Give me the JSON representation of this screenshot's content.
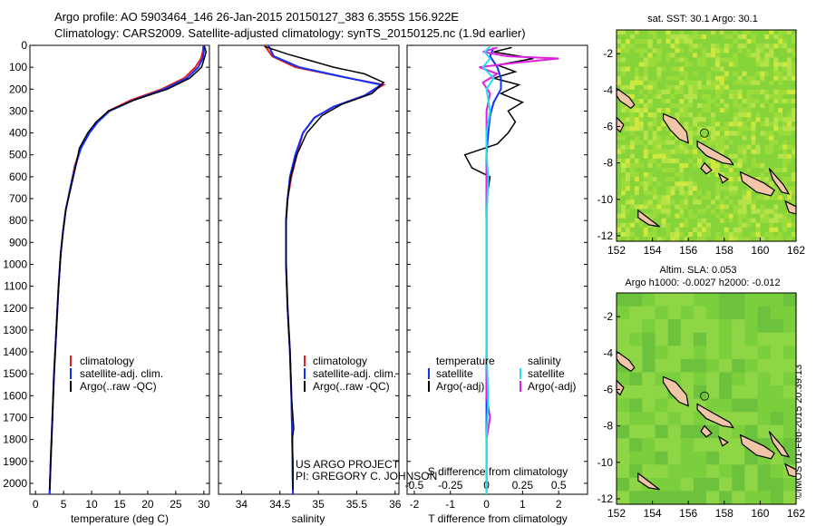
{
  "header": {
    "line1": "Argo profile: AO 5903464_146 26-Jan-2015 20150127_383 6.355S 156.922E",
    "line2": "Climatology: CARS2009. Satellite-adjusted climatology: synTS_20150125.nc (1.9d earlier)"
  },
  "watermark": "©IMOS 01-Feb-2015 20:39:13",
  "colors": {
    "climatology": "#e02020",
    "satellite": "#1030ff",
    "argo": "#000000",
    "sat_salinity": "#20e0f0",
    "argo_salinity": "#e020e0"
  },
  "chart_data": [
    {
      "type": "line",
      "name": "temperature-profile",
      "xlabel": "temperature (deg C)",
      "ylabel": "",
      "xlim": [
        -1,
        31
      ],
      "ylim": [
        2050,
        0
      ],
      "xticks": [
        "0",
        "5",
        "10",
        "15",
        "20",
        "25",
        "30"
      ],
      "yticks": [
        "0",
        "100",
        "200",
        "300",
        "400",
        "500",
        "600",
        "700",
        "800",
        "900",
        "1000",
        "1100",
        "1200",
        "1300",
        "1400",
        "1500",
        "1600",
        "1700",
        "1800",
        "1900",
        "2000"
      ],
      "legend": [
        "climatology",
        "satellite-adj. clim.",
        "Argo(..raw -QC)"
      ],
      "series": [
        {
          "name": "climatology",
          "color": "#e02020",
          "width": 2,
          "points": [
            [
              29.9,
              0
            ],
            [
              29.8,
              30
            ],
            [
              29.5,
              60
            ],
            [
              28.5,
              100
            ],
            [
              26.5,
              150
            ],
            [
              22.5,
              200
            ],
            [
              17,
              250
            ],
            [
              13,
              300
            ],
            [
              11,
              350
            ],
            [
              9.5,
              400
            ],
            [
              8,
              470
            ],
            [
              7,
              550
            ],
            [
              6.2,
              650
            ],
            [
              5.4,
              750
            ],
            [
              4.9,
              850
            ],
            [
              4.5,
              950
            ],
            [
              4.1,
              1100
            ],
            [
              3.7,
              1300
            ],
            [
              3.3,
              1500
            ],
            [
              3,
              1700
            ],
            [
              2.7,
              1900
            ],
            [
              2.5,
              2050
            ]
          ]
        },
        {
          "name": "satellite",
          "color": "#1030ff",
          "width": 2,
          "points": [
            [
              30.1,
              0
            ],
            [
              30,
              30
            ],
            [
              29.8,
              60
            ],
            [
              29,
              100
            ],
            [
              27,
              150
            ],
            [
              23,
              200
            ],
            [
              17.5,
              250
            ],
            [
              13.2,
              300
            ],
            [
              11.1,
              350
            ],
            [
              9.6,
              400
            ],
            [
              8.1,
              470
            ],
            [
              7.1,
              550
            ],
            [
              6.2,
              650
            ],
            [
              5.4,
              750
            ],
            [
              4.9,
              850
            ],
            [
              4.5,
              950
            ],
            [
              4.1,
              1100
            ],
            [
              3.7,
              1300
            ],
            [
              3.3,
              1500
            ],
            [
              3,
              1700
            ],
            [
              2.7,
              1900
            ],
            [
              2.5,
              2050
            ]
          ]
        },
        {
          "name": "argo",
          "color": "#000000",
          "width": 1.5,
          "points": [
            [
              30.1,
              5
            ],
            [
              30.4,
              30
            ],
            [
              30.2,
              50
            ],
            [
              29.6,
              100
            ],
            [
              27.5,
              150
            ],
            [
              23.5,
              200
            ],
            [
              17.5,
              250
            ],
            [
              13,
              300
            ],
            [
              10.8,
              350
            ],
            [
              9.3,
              400
            ],
            [
              7.8,
              470
            ],
            [
              7.2,
              550
            ],
            [
              6.3,
              650
            ],
            [
              5.4,
              750
            ],
            [
              4.9,
              850
            ],
            [
              4.5,
              950
            ],
            [
              4.1,
              1100
            ],
            [
              3.7,
              1300
            ],
            [
              3.3,
              1500
            ],
            [
              3,
              1700
            ],
            [
              2.7,
              1900
            ],
            [
              2.5,
              2030
            ]
          ]
        }
      ]
    },
    {
      "type": "line",
      "name": "salinity-profile",
      "xlabel": "salinity",
      "xlim": [
        33.7,
        36.05
      ],
      "ylim": [
        2050,
        0
      ],
      "xticks": [
        "34",
        "34.5",
        "35",
        "35.5",
        "36"
      ],
      "legend": [
        "climatology",
        "satellite-adj. clim.",
        "Argo(..raw -QC)"
      ],
      "annotation": [
        "US ARGO PROJECT",
        "PI: GREGORY C. JOHNSON"
      ],
      "series": [
        {
          "name": "climatology",
          "color": "#e02020",
          "width": 2,
          "points": [
            [
              34.3,
              0
            ],
            [
              34.4,
              50
            ],
            [
              34.7,
              100
            ],
            [
              35.4,
              150
            ],
            [
              35.85,
              180
            ],
            [
              35.6,
              230
            ],
            [
              35.2,
              280
            ],
            [
              34.95,
              330
            ],
            [
              34.8,
              400
            ],
            [
              34.72,
              500
            ],
            [
              34.65,
              600
            ],
            [
              34.6,
              700
            ],
            [
              34.58,
              800
            ],
            [
              34.58,
              1000
            ],
            [
              34.6,
              1200
            ],
            [
              34.63,
              1400
            ],
            [
              34.65,
              1600
            ],
            [
              34.66,
              1800
            ],
            [
              34.67,
              2050
            ]
          ]
        },
        {
          "name": "satellite",
          "color": "#1030ff",
          "width": 2,
          "points": [
            [
              34.35,
              0
            ],
            [
              34.42,
              50
            ],
            [
              34.75,
              100
            ],
            [
              35.4,
              150
            ],
            [
              35.82,
              180
            ],
            [
              35.6,
              230
            ],
            [
              35.2,
              280
            ],
            [
              34.95,
              330
            ],
            [
              34.8,
              400
            ],
            [
              34.7,
              500
            ],
            [
              34.63,
              600
            ],
            [
              34.6,
              700
            ],
            [
              34.58,
              800
            ],
            [
              34.58,
              1000
            ],
            [
              34.6,
              1200
            ],
            [
              34.63,
              1400
            ],
            [
              34.65,
              1600
            ],
            [
              34.66,
              1800
            ],
            [
              34.67,
              2050
            ]
          ]
        },
        {
          "name": "argo",
          "color": "#000000",
          "width": 1.5,
          "points": [
            [
              34.3,
              5
            ],
            [
              34.6,
              40
            ],
            [
              34.9,
              70
            ],
            [
              35.2,
              100
            ],
            [
              35.6,
              130
            ],
            [
              35.85,
              170
            ],
            [
              35.7,
              220
            ],
            [
              35.3,
              270
            ],
            [
              35.05,
              320
            ],
            [
              34.85,
              400
            ],
            [
              34.72,
              500
            ],
            [
              34.64,
              600
            ],
            [
              34.6,
              700
            ],
            [
              34.58,
              800
            ],
            [
              34.58,
              1000
            ],
            [
              34.6,
              1200
            ],
            [
              34.63,
              1400
            ],
            [
              34.65,
              1600
            ],
            [
              34.68,
              1750
            ],
            [
              34.66,
              1800
            ],
            [
              34.67,
              1900
            ],
            [
              34.67,
              2030
            ]
          ]
        }
      ]
    },
    {
      "type": "line",
      "name": "difference-profile",
      "xlabel": "T difference from climatology",
      "xlabel_top": "S difference from climatology",
      "xlim": [
        -2.2,
        2.8
      ],
      "ylim": [
        2050,
        0
      ],
      "xticks": [
        "-2",
        "-1",
        "0",
        "1",
        "2"
      ],
      "xticks_top": [
        "-0.5",
        "-0.25",
        "0",
        "0.25",
        "0.5"
      ],
      "legend_left": [
        "temperature",
        "satellite",
        "Argo(-adj)"
      ],
      "legend_right": [
        "salinity",
        "satellite",
        "Argo(-adj)"
      ],
      "series": [
        {
          "name": "T-argo",
          "color": "#000000",
          "width": 1.5,
          "points": [
            [
              0.7,
              10
            ],
            [
              0.2,
              30
            ],
            [
              1.3,
              60
            ],
            [
              0.3,
              90
            ],
            [
              0.8,
              120
            ],
            [
              0.2,
              150
            ],
            [
              0.9,
              180
            ],
            [
              0.4,
              220
            ],
            [
              1.0,
              260
            ],
            [
              0.6,
              300
            ],
            [
              0.8,
              350
            ],
            [
              0.6,
              400
            ],
            [
              0.3,
              450
            ],
            [
              -0.6,
              500
            ],
            [
              -0.4,
              560
            ],
            [
              0.1,
              600
            ],
            [
              0,
              700
            ],
            [
              0,
              900
            ],
            [
              0,
              1100
            ],
            [
              0,
              1300
            ],
            [
              0,
              1500
            ],
            [
              0,
              1700
            ],
            [
              0,
              1900
            ],
            [
              0,
              2030
            ]
          ]
        },
        {
          "name": "T-satellite",
          "color": "#1030ff",
          "width": 2,
          "points": [
            [
              0.2,
              10
            ],
            [
              0.1,
              50
            ],
            [
              0.3,
              100
            ],
            [
              0.4,
              150
            ],
            [
              0.4,
              200
            ],
            [
              0.2,
              260
            ],
            [
              0.1,
              320
            ],
            [
              0.05,
              400
            ],
            [
              0,
              500
            ],
            [
              0,
              700
            ],
            [
              0,
              900
            ],
            [
              0,
              1100
            ],
            [
              0,
              1300
            ],
            [
              0,
              1500
            ],
            [
              0,
              1700
            ],
            [
              0,
              1900
            ],
            [
              0,
              2050
            ]
          ]
        },
        {
          "name": "S-argo",
          "color": "#e020e0",
          "width": 2,
          "points": [
            [
              0.3,
              10
            ],
            [
              -0.1,
              30
            ],
            [
              0.6,
              50
            ],
            [
              2.0,
              60
            ],
            [
              0.8,
              80
            ],
            [
              -0.2,
              100
            ],
            [
              0.3,
              130
            ],
            [
              -0.1,
              170
            ],
            [
              0.1,
              220
            ],
            [
              0,
              300
            ],
            [
              0,
              400
            ],
            [
              0,
              600
            ],
            [
              0,
              800
            ],
            [
              0,
              1000
            ],
            [
              0,
              1200
            ],
            [
              0,
              1400
            ],
            [
              0,
              1600
            ],
            [
              0.1,
              1700
            ],
            [
              0,
              1800
            ],
            [
              0,
              2030
            ]
          ]
        },
        {
          "name": "S-satellite",
          "color": "#20e0f0",
          "width": 2,
          "points": [
            [
              0.1,
              5
            ],
            [
              -0.05,
              30
            ],
            [
              0.1,
              60
            ],
            [
              -0.1,
              100
            ],
            [
              0.2,
              150
            ],
            [
              0,
              200
            ],
            [
              0.1,
              300
            ],
            [
              0,
              400
            ],
            [
              0,
              500
            ],
            [
              0.05,
              600
            ],
            [
              0,
              800
            ],
            [
              0,
              1000
            ],
            [
              0,
              1200
            ],
            [
              0,
              1400
            ],
            [
              0.05,
              1600
            ],
            [
              0,
              1800
            ],
            [
              0,
              2050
            ]
          ]
        }
      ]
    },
    {
      "type": "heatmap",
      "name": "sst-map",
      "title": "sat. SST: 30.1  Argo: 30.1",
      "xlim": [
        152,
        162
      ],
      "ylim": [
        -12.3,
        -0.7
      ],
      "xticks": [
        "152",
        "154",
        "156",
        "158",
        "160",
        "162"
      ],
      "yticks": [
        "-2",
        "-4",
        "-6",
        "-8",
        "-10",
        "-12"
      ],
      "marker": [
        156.9,
        -6.36
      ]
    },
    {
      "type": "heatmap",
      "name": "sla-map",
      "title": "Altim. SLA: 0.053",
      "subtitle": "Argo h1000: -0.0027 h2000: -0.012",
      "xlim": [
        152,
        162
      ],
      "ylim": [
        -12.3,
        -0.7
      ],
      "xticks": [
        "152",
        "154",
        "156",
        "158",
        "160",
        "162"
      ],
      "yticks": [
        "-2",
        "-4",
        "-6",
        "-8",
        "-10",
        "-12"
      ],
      "marker": [
        156.9,
        -6.36
      ]
    }
  ]
}
